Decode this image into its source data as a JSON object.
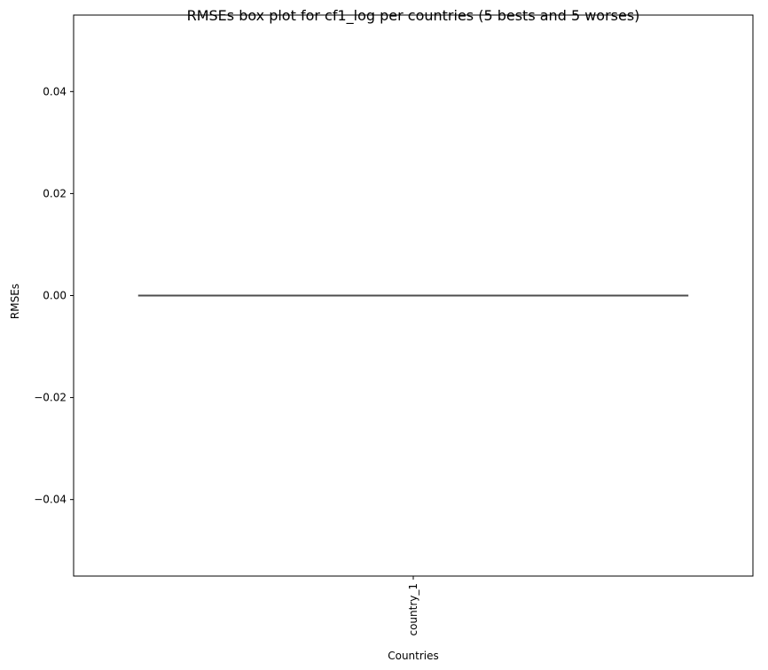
{
  "chart_data": {
    "type": "box",
    "title": "RMSEs box plot for cf1_log per countries (5 bests and 5 worses)",
    "xlabel": "Countries",
    "ylabel": "RMSEs",
    "categories": [
      "country_1"
    ],
    "boxes": [
      {
        "category": "country_1",
        "min": 0.0,
        "q1": 0.0,
        "median": 0.0,
        "q3": 0.0,
        "max": 0.0
      }
    ],
    "ylim": [
      -0.055,
      0.055
    ],
    "yticks": [
      -0.04,
      -0.02,
      0.0,
      0.02,
      0.04
    ],
    "ytick_labels": [
      "−0.04",
      "−0.02",
      "0.00",
      "0.02",
      "0.04"
    ],
    "grid": false,
    "colors": {
      "box_line": "#4d4d4d",
      "axes": "#000000",
      "background": "#ffffff"
    }
  }
}
